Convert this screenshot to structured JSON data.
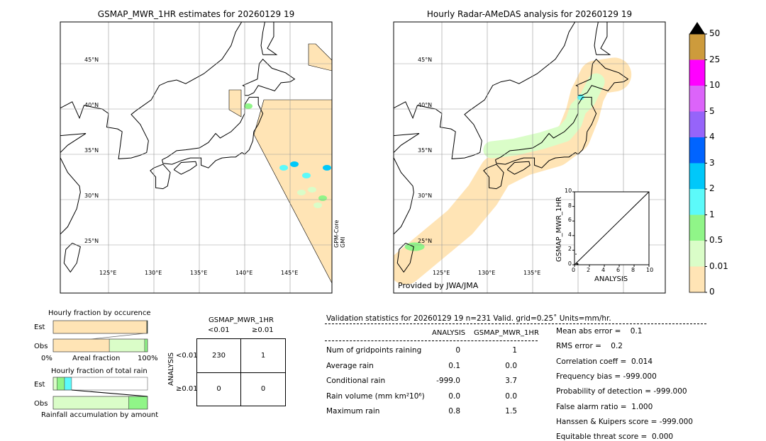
{
  "chart_data": [
    {
      "type": "map",
      "title": "GSMAP_MWR_1HR estimates for 20260129 19",
      "lat_ticks": [
        "45°N",
        "40°N",
        "35°N",
        "30°N",
        "25°N"
      ],
      "lon_ticks": [
        "125°E",
        "130°E",
        "135°E",
        "140°E",
        "145°E"
      ],
      "swath_label": [
        "GPM-Core",
        "GMI"
      ]
    },
    {
      "type": "map",
      "title": "Hourly Radar-AMeDAS analysis for 20260129 19",
      "lat_ticks": [
        "45°N",
        "40°N",
        "35°N",
        "30°N",
        "25°N"
      ],
      "lon_ticks": [
        "125°E",
        "130°E",
        "135°E"
      ],
      "credit": "Provided by JWA/JMA",
      "inset": {
        "type": "scatter",
        "xlabel": "ANALYSIS",
        "ylabel": "GSMAP_MWR_1HR",
        "xlim": [
          0,
          10
        ],
        "ylim": [
          0,
          10
        ],
        "ticks": [
          "0",
          "2",
          "4",
          "6",
          "8",
          "10"
        ]
      }
    },
    {
      "type": "colorbar",
      "levels": [
        "0",
        "0.01",
        "0.5",
        "1",
        "2",
        "3",
        "4",
        "5",
        "10",
        "25",
        "50"
      ],
      "colors": [
        "#FFE4B5",
        "#DAFDC8",
        "#90F588",
        "#5CFAFA",
        "#00C8FA",
        "#0064FF",
        "#9664FA",
        "#DC64FA",
        "#FF00FF",
        "#CD9B3C"
      ],
      "extend_color": "#000000"
    },
    {
      "type": "bar",
      "title": "Hourly fraction by occurence",
      "categories": [
        "Est",
        "Obs"
      ],
      "series": [
        {
          "category": "Est",
          "segments": [
            {
              "color": "#FFE4B5",
              "value": 99.2
            },
            {
              "color": "#1a3a1a",
              "value": 0.8
            }
          ]
        },
        {
          "category": "Obs",
          "segments": [
            {
              "color": "#FFE4B5",
              "value": 59.5
            },
            {
              "color": "#DAFDC8",
              "value": 37.5
            },
            {
              "color": "#90F588",
              "value": 3
            }
          ]
        }
      ],
      "xlabel": "Areal fraction",
      "xtick_left": "0%",
      "xtick_right": "100%"
    },
    {
      "type": "bar",
      "title": "Hourly fraction of total rain",
      "categories": [
        "Est",
        "Obs"
      ],
      "series": [
        {
          "category": "Est",
          "segments": [
            {
              "color": "#DAFDC8",
              "value": 4
            },
            {
              "color": "#90F588",
              "value": 8
            },
            {
              "color": "#5CFAFA",
              "value": 7.5
            }
          ]
        },
        {
          "category": "Obs",
          "segments": [
            {
              "color": "#DAFDC8",
              "value": 80
            },
            {
              "color": "#90F588",
              "value": 20
            }
          ]
        }
      ],
      "xlabel": "Rainfall accumulation by amount"
    },
    {
      "type": "table",
      "title": "GSMAP_MWR_1HR",
      "col_headers": [
        "<0.01",
        "≥0.01"
      ],
      "row_label": "ANALYSIS",
      "row_headers": [
        "<0.01",
        "≥0.01"
      ],
      "cells": [
        [
          "230",
          "1"
        ],
        [
          "0",
          "0"
        ]
      ]
    }
  ],
  "stats": {
    "header": "Validation statistics for 20260129 19  n=231 Valid. grid=0.25˚ Units=mm/hr.",
    "col_analysis": "ANALYSIS",
    "col_gsmap": "GSMAP_MWR_1HR",
    "rows": [
      {
        "label": "Num of gridpoints raining",
        "analysis": "0",
        "gsmap": "1"
      },
      {
        "label": "Average rain",
        "analysis": "0.1",
        "gsmap": "0.0"
      },
      {
        "label": "Conditional rain",
        "analysis": "-999.0",
        "gsmap": "3.7"
      },
      {
        "label": "Rain volume (mm km²10⁶)",
        "analysis": "0.0",
        "gsmap": "0.0"
      },
      {
        "label": "Maximum rain",
        "analysis": "0.8",
        "gsmap": "1.5"
      }
    ],
    "scores": [
      "Mean abs error =    0.1",
      "RMS error =    0.2",
      "Correlation coeff =  0.014",
      "Frequency bias = -999.000",
      "Probability of detection = -999.000",
      "False alarm ratio =  1.000",
      "Hanssen & Kuipers score = -999.000",
      "Equitable threat score =  0.000"
    ]
  }
}
